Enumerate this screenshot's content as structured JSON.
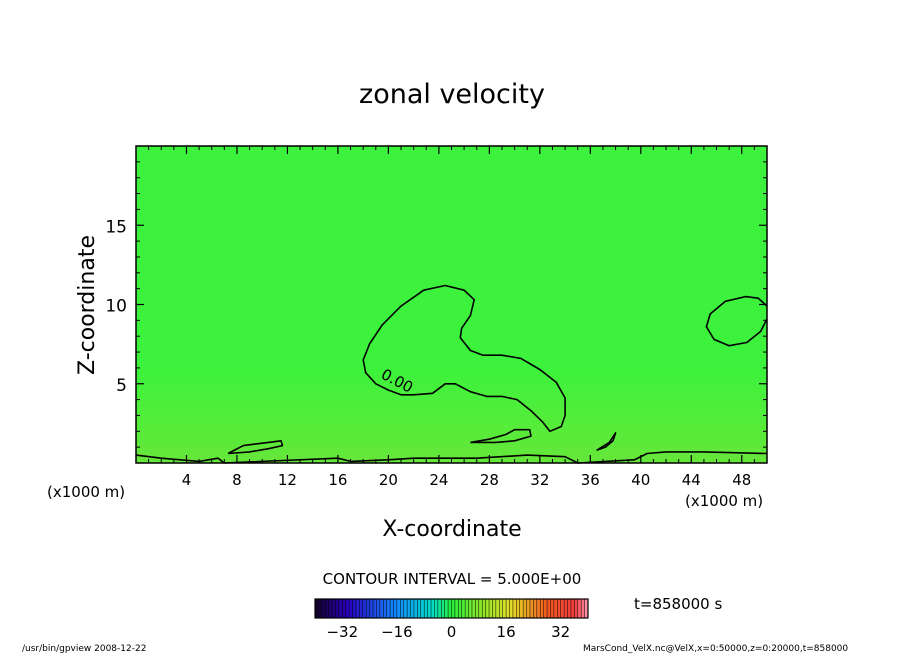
{
  "chart_data": {
    "type": "heatmap",
    "title": "zonal velocity",
    "xlabel": "X-coordinate",
    "ylabel": "Z-coordinate",
    "x_unit_left": "(x1000 m)",
    "x_unit_right": "(x1000 m)",
    "xlim": [
      0,
      50
    ],
    "ylim": [
      0,
      20
    ],
    "x_ticks": [
      4,
      8,
      12,
      16,
      20,
      24,
      28,
      32,
      36,
      40,
      44,
      48
    ],
    "y_ticks": [
      5,
      10,
      15
    ],
    "contour_label": "0.00",
    "contour_interval_text": "CONTOUR INTERVAL = 5.000E+00",
    "time_text": "t=858000 s",
    "colorbar": {
      "range": [
        -40,
        40
      ],
      "ticks": [
        -32,
        -16,
        0,
        16,
        32
      ],
      "tick_labels": [
        "−32",
        "−16",
        "0",
        "16",
        "32"
      ]
    },
    "field_color": "#3bf43b",
    "contours": [
      {
        "name": "zero-contour-main",
        "points": [
          [
            18,
            6.5
          ],
          [
            18.5,
            7.5
          ],
          [
            19.5,
            8.7
          ],
          [
            21,
            9.9
          ],
          [
            22.8,
            10.9
          ],
          [
            24.5,
            11.2
          ],
          [
            26,
            10.9
          ],
          [
            26.8,
            10.3
          ],
          [
            26.5,
            9.3
          ],
          [
            25.8,
            8.5
          ],
          [
            25.7,
            7.9
          ],
          [
            26.5,
            7.1
          ],
          [
            27.5,
            6.8
          ],
          [
            29,
            6.8
          ],
          [
            30.5,
            6.6
          ],
          [
            32,
            5.9
          ],
          [
            33.3,
            5.1
          ],
          [
            34,
            4.1
          ],
          [
            34,
            3.0
          ],
          [
            33.7,
            2.3
          ],
          [
            32.8,
            2.0
          ],
          [
            32.2,
            2.6
          ],
          [
            31.3,
            3.3
          ],
          [
            30.2,
            4.0
          ],
          [
            29,
            4.2
          ],
          [
            27.8,
            4.2
          ],
          [
            26.5,
            4.5
          ],
          [
            25.3,
            5.0
          ],
          [
            24.5,
            5.0
          ],
          [
            23.5,
            4.4
          ],
          [
            22,
            4.3
          ],
          [
            21,
            4.3
          ],
          [
            20,
            4.6
          ],
          [
            19,
            5.0
          ],
          [
            18.2,
            5.7
          ],
          [
            18,
            6.5
          ]
        ]
      },
      {
        "name": "zero-contour-right",
        "points": [
          [
            50,
            9.9
          ],
          [
            49.3,
            10.4
          ],
          [
            48.3,
            10.5
          ],
          [
            46.7,
            10.2
          ],
          [
            45.5,
            9.4
          ],
          [
            45.2,
            8.6
          ],
          [
            45.8,
            7.8
          ],
          [
            47,
            7.4
          ],
          [
            48.4,
            7.6
          ],
          [
            49.5,
            8.3
          ],
          [
            50,
            9.1
          ]
        ]
      },
      {
        "name": "zero-contour-lowleft",
        "points": [
          [
            7.3,
            0.6
          ],
          [
            8.5,
            1.1
          ],
          [
            10.5,
            1.3
          ],
          [
            11.5,
            1.4
          ],
          [
            11.6,
            1.1
          ],
          [
            10.5,
            0.9
          ],
          [
            9,
            0.7
          ],
          [
            7.3,
            0.6
          ]
        ]
      },
      {
        "name": "zero-contour-lowmid",
        "points": [
          [
            26.5,
            1.3
          ],
          [
            28,
            1.5
          ],
          [
            29.3,
            1.8
          ],
          [
            30,
            2.1
          ],
          [
            31.2,
            2.1
          ],
          [
            31.3,
            1.7
          ],
          [
            30,
            1.4
          ],
          [
            28.5,
            1.3
          ],
          [
            26.5,
            1.3
          ]
        ]
      },
      {
        "name": "zero-contour-lowright",
        "points": [
          [
            36.5,
            0.8
          ],
          [
            37.5,
            1.3
          ],
          [
            38,
            1.9
          ],
          [
            37.8,
            1.4
          ],
          [
            37.2,
            1.0
          ],
          [
            36.5,
            0.8
          ]
        ]
      },
      {
        "name": "zero-contour-surface",
        "points": [
          [
            0,
            0.5
          ],
          [
            2,
            0.3
          ],
          [
            5,
            0.1
          ],
          [
            6.5,
            0.3
          ],
          [
            7,
            0
          ],
          [
            16,
            0.3
          ],
          [
            17,
            0.1
          ],
          [
            20,
            0.2
          ],
          [
            22,
            0.3
          ],
          [
            27,
            0.3
          ],
          [
            31,
            0.5
          ],
          [
            34,
            0.4
          ],
          [
            35,
            0
          ],
          [
            39.5,
            0.2
          ],
          [
            40.5,
            0.6
          ],
          [
            42,
            0.7
          ],
          [
            45,
            0.7
          ],
          [
            50,
            0.6
          ]
        ]
      }
    ]
  },
  "footer": {
    "left": "/usr/bin/gpview   2008-12-22",
    "right": "MarsCond_VelX.nc@VelX,x=0:50000,z=0:20000,t=858000"
  }
}
